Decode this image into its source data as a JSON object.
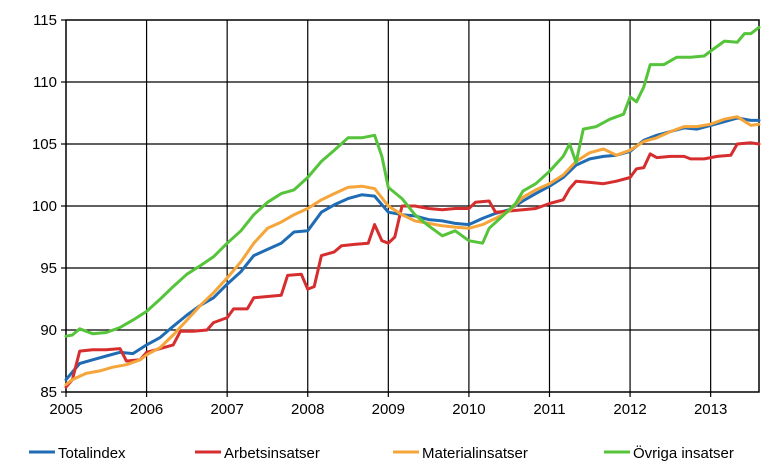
{
  "chart_data": {
    "type": "line",
    "title": "",
    "xlabel": "",
    "ylabel": "",
    "xlim": [
      2005,
      2013.6
    ],
    "ylim": [
      85,
      115
    ],
    "x_ticks": [
      "2005",
      "2006",
      "2007",
      "2008",
      "2009",
      "2010",
      "2011",
      "2012",
      "2013"
    ],
    "y_ticks": [
      "85",
      "90",
      "95",
      "100",
      "105",
      "110",
      "115"
    ],
    "grid": true,
    "legend_position": "bottom",
    "series": [
      {
        "name": "Totalindex",
        "color": "#1f6cb4",
        "points": [
          [
            2005.0,
            86.0
          ],
          [
            2005.17,
            87.3
          ],
          [
            2005.33,
            87.6
          ],
          [
            2005.5,
            87.9
          ],
          [
            2005.67,
            88.2
          ],
          [
            2005.83,
            88.1
          ],
          [
            2006.0,
            88.8
          ],
          [
            2006.17,
            89.4
          ],
          [
            2006.33,
            90.3
          ],
          [
            2006.5,
            91.2
          ],
          [
            2006.67,
            92.0
          ],
          [
            2006.83,
            92.6
          ],
          [
            2007.0,
            93.7
          ],
          [
            2007.17,
            94.7
          ],
          [
            2007.33,
            96.0
          ],
          [
            2007.5,
            96.5
          ],
          [
            2007.67,
            97.0
          ],
          [
            2007.83,
            97.9
          ],
          [
            2008.0,
            98.0
          ],
          [
            2008.17,
            99.5
          ],
          [
            2008.33,
            100.1
          ],
          [
            2008.5,
            100.6
          ],
          [
            2008.67,
            100.9
          ],
          [
            2008.83,
            100.8
          ],
          [
            2009.0,
            99.5
          ],
          [
            2009.17,
            99.3
          ],
          [
            2009.33,
            99.2
          ],
          [
            2009.5,
            98.9
          ],
          [
            2009.67,
            98.8
          ],
          [
            2009.83,
            98.6
          ],
          [
            2010.0,
            98.5
          ],
          [
            2010.17,
            99.0
          ],
          [
            2010.33,
            99.4
          ],
          [
            2010.5,
            99.7
          ],
          [
            2010.67,
            100.4
          ],
          [
            2010.83,
            101.0
          ],
          [
            2011.0,
            101.6
          ],
          [
            2011.17,
            102.3
          ],
          [
            2011.33,
            103.3
          ],
          [
            2011.5,
            103.8
          ],
          [
            2011.67,
            104.0
          ],
          [
            2011.83,
            104.1
          ],
          [
            2012.0,
            104.4
          ],
          [
            2012.17,
            105.3
          ],
          [
            2012.33,
            105.7
          ],
          [
            2012.5,
            106.0
          ],
          [
            2012.67,
            106.3
          ],
          [
            2012.83,
            106.2
          ],
          [
            2013.0,
            106.5
          ],
          [
            2013.17,
            106.8
          ],
          [
            2013.33,
            107.1
          ],
          [
            2013.5,
            106.9
          ],
          [
            2013.6,
            106.9
          ]
        ]
      },
      {
        "name": "Arbetsinsatser",
        "color": "#d62e2e",
        "points": [
          [
            2005.0,
            85.4
          ],
          [
            2005.08,
            86.0
          ],
          [
            2005.17,
            88.3
          ],
          [
            2005.33,
            88.4
          ],
          [
            2005.5,
            88.4
          ],
          [
            2005.67,
            88.5
          ],
          [
            2005.75,
            87.5
          ],
          [
            2005.92,
            87.6
          ],
          [
            2006.0,
            88.2
          ],
          [
            2006.17,
            88.5
          ],
          [
            2006.33,
            88.8
          ],
          [
            2006.42,
            89.9
          ],
          [
            2006.58,
            89.9
          ],
          [
            2006.75,
            90.0
          ],
          [
            2006.83,
            90.6
          ],
          [
            2007.0,
            91.0
          ],
          [
            2007.08,
            91.7
          ],
          [
            2007.25,
            91.7
          ],
          [
            2007.33,
            92.6
          ],
          [
            2007.5,
            92.7
          ],
          [
            2007.67,
            92.8
          ],
          [
            2007.75,
            94.4
          ],
          [
            2007.92,
            94.5
          ],
          [
            2008.0,
            93.3
          ],
          [
            2008.08,
            93.5
          ],
          [
            2008.17,
            96.0
          ],
          [
            2008.33,
            96.3
          ],
          [
            2008.42,
            96.8
          ],
          [
            2008.58,
            96.9
          ],
          [
            2008.75,
            97.0
          ],
          [
            2008.83,
            98.5
          ],
          [
            2008.92,
            97.2
          ],
          [
            2009.0,
            97.0
          ],
          [
            2009.08,
            97.5
          ],
          [
            2009.17,
            100.0
          ],
          [
            2009.33,
            100.0
          ],
          [
            2009.5,
            99.8
          ],
          [
            2009.67,
            99.7
          ],
          [
            2009.83,
            99.8
          ],
          [
            2010.0,
            99.8
          ],
          [
            2010.08,
            100.3
          ],
          [
            2010.25,
            100.4
          ],
          [
            2010.33,
            99.5
          ],
          [
            2010.5,
            99.6
          ],
          [
            2010.67,
            99.7
          ],
          [
            2010.83,
            99.8
          ],
          [
            2011.0,
            100.2
          ],
          [
            2011.17,
            100.5
          ],
          [
            2011.25,
            101.4
          ],
          [
            2011.33,
            102.0
          ],
          [
            2011.5,
            101.9
          ],
          [
            2011.67,
            101.8
          ],
          [
            2011.83,
            102.0
          ],
          [
            2012.0,
            102.3
          ],
          [
            2012.08,
            103.0
          ],
          [
            2012.17,
            103.1
          ],
          [
            2012.25,
            104.2
          ],
          [
            2012.33,
            103.9
          ],
          [
            2012.5,
            104.0
          ],
          [
            2012.67,
            104.0
          ],
          [
            2012.75,
            103.8
          ],
          [
            2012.92,
            103.8
          ],
          [
            2013.0,
            103.9
          ],
          [
            2013.08,
            104.0
          ],
          [
            2013.25,
            104.1
          ],
          [
            2013.33,
            105.0
          ],
          [
            2013.5,
            105.1
          ],
          [
            2013.6,
            105.0
          ]
        ]
      },
      {
        "name": "Materialinsatser",
        "color": "#f5a53a",
        "points": [
          [
            2005.0,
            85.6
          ],
          [
            2005.08,
            86.0
          ],
          [
            2005.25,
            86.5
          ],
          [
            2005.42,
            86.7
          ],
          [
            2005.58,
            87.0
          ],
          [
            2005.75,
            87.2
          ],
          [
            2005.92,
            87.6
          ],
          [
            2006.0,
            88.0
          ],
          [
            2006.17,
            88.6
          ],
          [
            2006.33,
            89.6
          ],
          [
            2006.5,
            90.8
          ],
          [
            2006.67,
            92.0
          ],
          [
            2006.83,
            93.0
          ],
          [
            2007.0,
            94.2
          ],
          [
            2007.17,
            95.5
          ],
          [
            2007.33,
            97.0
          ],
          [
            2007.5,
            98.2
          ],
          [
            2007.67,
            98.7
          ],
          [
            2007.83,
            99.3
          ],
          [
            2008.0,
            99.8
          ],
          [
            2008.17,
            100.5
          ],
          [
            2008.33,
            101.0
          ],
          [
            2008.5,
            101.5
          ],
          [
            2008.67,
            101.6
          ],
          [
            2008.83,
            101.4
          ],
          [
            2009.0,
            100.0
          ],
          [
            2009.17,
            99.3
          ],
          [
            2009.33,
            98.8
          ],
          [
            2009.5,
            98.6
          ],
          [
            2009.67,
            98.4
          ],
          [
            2009.83,
            98.3
          ],
          [
            2010.0,
            98.2
          ],
          [
            2010.17,
            98.5
          ],
          [
            2010.33,
            99.0
          ],
          [
            2010.5,
            99.6
          ],
          [
            2010.67,
            100.7
          ],
          [
            2010.83,
            101.3
          ],
          [
            2011.0,
            101.8
          ],
          [
            2011.17,
            102.5
          ],
          [
            2011.33,
            103.6
          ],
          [
            2011.5,
            104.3
          ],
          [
            2011.67,
            104.6
          ],
          [
            2011.83,
            104.1
          ],
          [
            2012.0,
            104.5
          ],
          [
            2012.17,
            105.2
          ],
          [
            2012.33,
            105.5
          ],
          [
            2012.5,
            106.0
          ],
          [
            2012.67,
            106.4
          ],
          [
            2012.83,
            106.4
          ],
          [
            2013.0,
            106.6
          ],
          [
            2013.17,
            107.0
          ],
          [
            2013.33,
            107.2
          ],
          [
            2013.5,
            106.5
          ],
          [
            2013.6,
            106.6
          ]
        ]
      },
      {
        "name": "Övriga insatser",
        "color": "#55c43a",
        "points": [
          [
            2005.0,
            89.5
          ],
          [
            2005.08,
            89.6
          ],
          [
            2005.17,
            90.1
          ],
          [
            2005.33,
            89.7
          ],
          [
            2005.5,
            89.8
          ],
          [
            2005.67,
            90.2
          ],
          [
            2005.83,
            90.8
          ],
          [
            2006.0,
            91.5
          ],
          [
            2006.17,
            92.5
          ],
          [
            2006.33,
            93.5
          ],
          [
            2006.5,
            94.5
          ],
          [
            2006.67,
            95.2
          ],
          [
            2006.83,
            95.9
          ],
          [
            2007.0,
            97.0
          ],
          [
            2007.17,
            98.0
          ],
          [
            2007.33,
            99.3
          ],
          [
            2007.5,
            100.3
          ],
          [
            2007.67,
            101.0
          ],
          [
            2007.83,
            101.3
          ],
          [
            2008.0,
            102.3
          ],
          [
            2008.17,
            103.6
          ],
          [
            2008.33,
            104.5
          ],
          [
            2008.5,
            105.5
          ],
          [
            2008.67,
            105.5
          ],
          [
            2008.83,
            105.7
          ],
          [
            2008.92,
            104.0
          ],
          [
            2009.0,
            101.5
          ],
          [
            2009.17,
            100.6
          ],
          [
            2009.33,
            99.3
          ],
          [
            2009.5,
            98.4
          ],
          [
            2009.67,
            97.6
          ],
          [
            2009.83,
            98.0
          ],
          [
            2010.0,
            97.2
          ],
          [
            2010.17,
            97.0
          ],
          [
            2010.25,
            98.2
          ],
          [
            2010.42,
            99.2
          ],
          [
            2010.58,
            100.2
          ],
          [
            2010.67,
            101.2
          ],
          [
            2010.83,
            101.8
          ],
          [
            2011.0,
            102.8
          ],
          [
            2011.17,
            104.0
          ],
          [
            2011.25,
            105.0
          ],
          [
            2011.33,
            103.5
          ],
          [
            2011.42,
            106.2
          ],
          [
            2011.58,
            106.4
          ],
          [
            2011.75,
            107.0
          ],
          [
            2011.92,
            107.4
          ],
          [
            2012.0,
            108.8
          ],
          [
            2012.08,
            108.4
          ],
          [
            2012.17,
            109.6
          ],
          [
            2012.25,
            111.4
          ],
          [
            2012.42,
            111.4
          ],
          [
            2012.58,
            112.0
          ],
          [
            2012.75,
            112.0
          ],
          [
            2012.92,
            112.1
          ],
          [
            2013.0,
            112.5
          ],
          [
            2013.17,
            113.3
          ],
          [
            2013.33,
            113.2
          ],
          [
            2013.42,
            113.9
          ],
          [
            2013.5,
            113.9
          ],
          [
            2013.6,
            114.4
          ]
        ]
      }
    ]
  }
}
